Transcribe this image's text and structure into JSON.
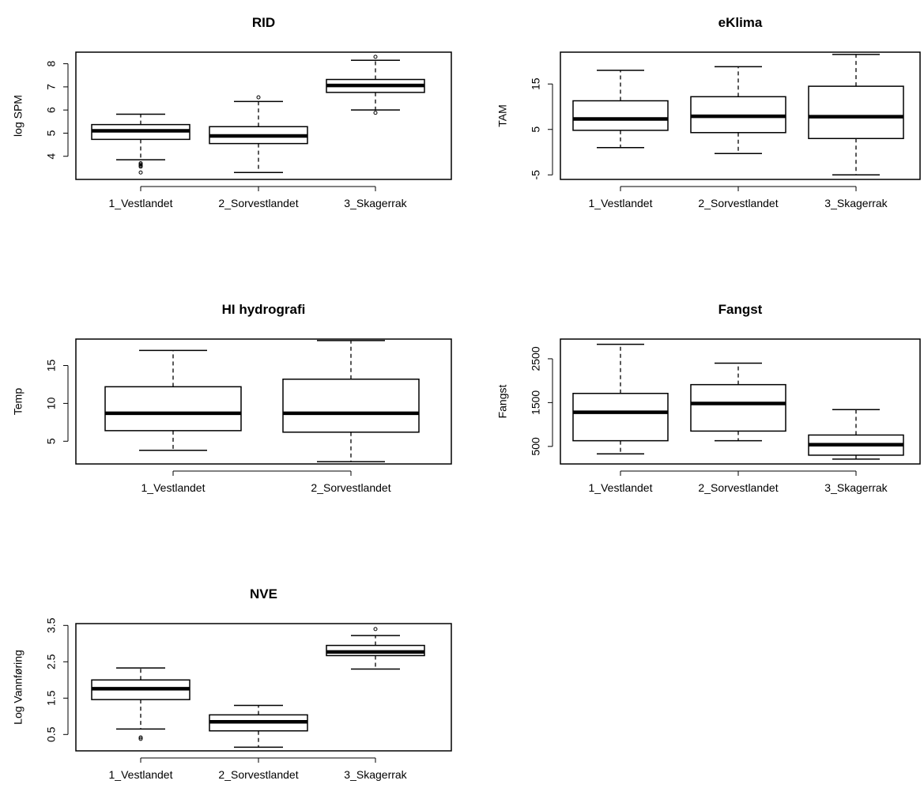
{
  "chart_data": [
    {
      "type": "box",
      "title": "RID",
      "xlabel": "",
      "ylabel": "log SPM",
      "ylim": [
        3.0,
        8.5
      ],
      "yticks": [
        4,
        5,
        6,
        7,
        8
      ],
      "yticklabels": [
        "4",
        "5",
        "6",
        "7",
        "8"
      ],
      "categories": [
        "1_Vestlandet",
        "2_Sorvestlandet",
        "3_Skagerrak"
      ],
      "boxes": [
        {
          "whisker_low": 3.85,
          "q1": 4.73,
          "median": 5.1,
          "q3": 5.37,
          "whisker_high": 5.82,
          "outliers": [
            3.3,
            3.55,
            3.6,
            3.65,
            3.7
          ]
        },
        {
          "whisker_low": 3.3,
          "q1": 4.55,
          "median": 4.88,
          "q3": 5.28,
          "whisker_high": 6.37,
          "outliers": [
            6.55
          ]
        },
        {
          "whisker_low": 6.0,
          "q1": 6.76,
          "median": 7.06,
          "q3": 7.32,
          "whisker_high": 8.15,
          "outliers": [
            5.88,
            8.3
          ]
        }
      ]
    },
    {
      "type": "box",
      "title": "eKlima",
      "xlabel": "",
      "ylabel": "TAM",
      "ylim": [
        -6,
        22
      ],
      "yticks": [
        -5,
        5,
        15
      ],
      "yticklabels": [
        "-5",
        "5",
        "15"
      ],
      "categories": [
        "1_Vestlandet",
        "2_Sorvestlandet",
        "3_Skagerrak"
      ],
      "boxes": [
        {
          "whisker_low": 1.0,
          "q1": 4.8,
          "median": 7.3,
          "q3": 11.3,
          "whisker_high": 18.0,
          "outliers": []
        },
        {
          "whisker_low": -0.3,
          "q1": 4.3,
          "median": 7.9,
          "q3": 12.2,
          "whisker_high": 18.8,
          "outliers": []
        },
        {
          "whisker_low": -5.0,
          "q1": 3.0,
          "median": 7.8,
          "q3": 14.5,
          "whisker_high": 21.5,
          "outliers": []
        }
      ]
    },
    {
      "type": "box",
      "title": "HI hydrografi",
      "xlabel": "",
      "ylabel": "Temp",
      "ylim": [
        2,
        18.5
      ],
      "yticks": [
        5,
        10,
        15
      ],
      "yticklabels": [
        "5",
        "10",
        "15"
      ],
      "categories": [
        "1_Vestlandet",
        "2_Sorvestlandet"
      ],
      "boxes": [
        {
          "whisker_low": 3.8,
          "q1": 6.4,
          "median": 8.7,
          "q3": 12.2,
          "whisker_high": 17.0,
          "outliers": []
        },
        {
          "whisker_low": 2.3,
          "q1": 6.2,
          "median": 8.7,
          "q3": 13.2,
          "whisker_high": 18.3,
          "outliers": []
        }
      ]
    },
    {
      "type": "box",
      "title": "Fangst",
      "xlabel": "",
      "ylabel": "Fangst",
      "ylim": [
        100,
        2950
      ],
      "yticks": [
        500,
        1500,
        2500
      ],
      "yticklabels": [
        "500",
        "1500",
        "2500"
      ],
      "categories": [
        "1_Vestlandet",
        "2_Sorvestlandet",
        "3_Skagerrak"
      ],
      "boxes": [
        {
          "whisker_low": 330,
          "q1": 630,
          "median": 1280,
          "q3": 1710,
          "whisker_high": 2830,
          "outliers": []
        },
        {
          "whisker_low": 630,
          "q1": 850,
          "median": 1480,
          "q3": 1910,
          "whisker_high": 2400,
          "outliers": []
        },
        {
          "whisker_low": 210,
          "q1": 300,
          "median": 540,
          "q3": 760,
          "whisker_high": 1340,
          "outliers": []
        }
      ]
    },
    {
      "type": "box",
      "title": "NVE",
      "xlabel": "",
      "ylabel": "Log Vannføring",
      "ylim": [
        0.05,
        3.55
      ],
      "yticks": [
        0.5,
        1.5,
        2.5,
        3.5
      ],
      "yticklabels": [
        "0.5",
        "1.5",
        "2.5",
        "3.5"
      ],
      "categories": [
        "1_Vestlandet",
        "2_Sorvestlandet",
        "3_Skagerrak"
      ],
      "boxes": [
        {
          "whisker_low": 0.65,
          "q1": 1.46,
          "median": 1.76,
          "q3": 2.0,
          "whisker_high": 2.33,
          "outliers": [
            0.38,
            0.42
          ]
        },
        {
          "whisker_low": 0.15,
          "q1": 0.6,
          "median": 0.85,
          "q3": 1.04,
          "whisker_high": 1.3,
          "outliers": []
        },
        {
          "whisker_low": 2.3,
          "q1": 2.67,
          "median": 2.77,
          "q3": 2.95,
          "whisker_high": 3.22,
          "outliers": [
            3.4
          ]
        }
      ]
    }
  ]
}
